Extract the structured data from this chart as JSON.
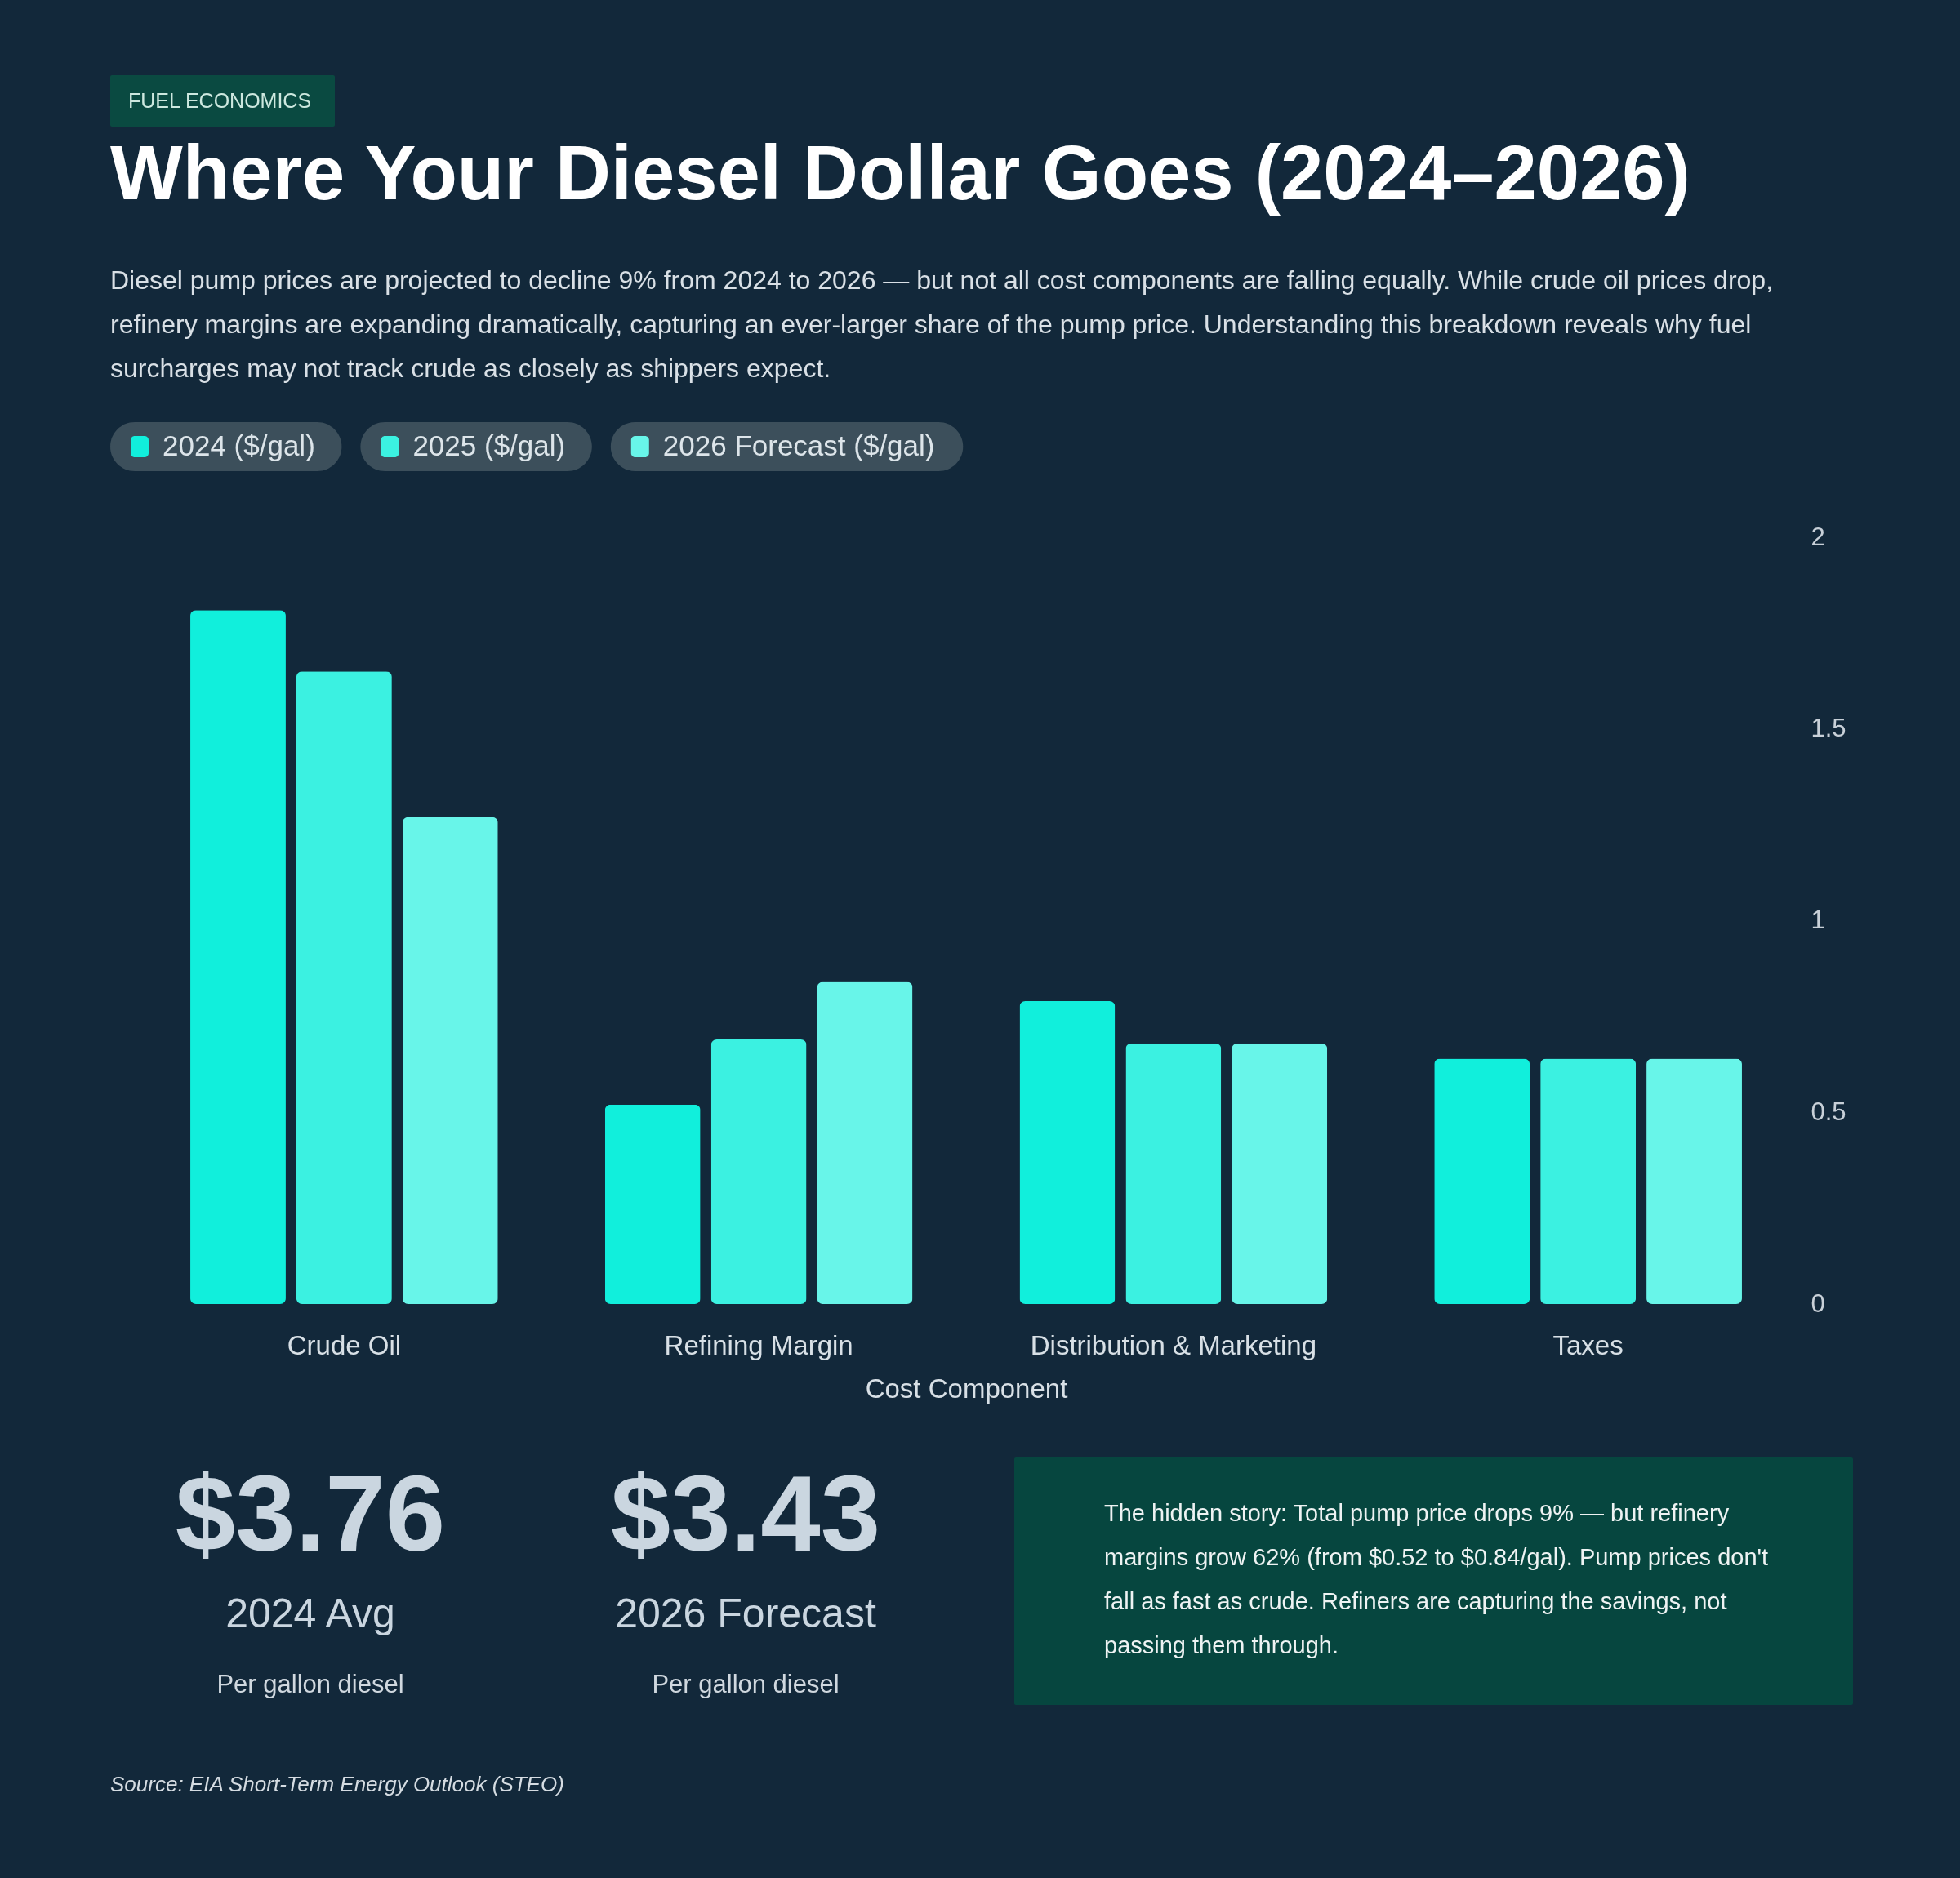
{
  "chart_data": {
    "type": "bar",
    "title": "Where Your Diesel Dollar Goes (2024–2026)",
    "subtitle": "Diesel pump prices are projected to decline 9% from 2024 to 2026 — but not all cost components are falling equally. While crude oil prices drop, refinery margins are expanding dramatically, capturing an ever-larger share of the pump price. Understanding this breakdown reveals why fuel surcharges may not track crude as closely as shippers expect.",
    "xlabel": "Cost Component",
    "categories": [
      "Crude Oil",
      "Refining Margin",
      "Distribution & Marketing",
      "Taxes"
    ],
    "series": [
      {
        "name": "2024 ($/gal)",
        "color": "#11efdc",
        "values": [
          1.81,
          0.52,
          0.79,
          0.64
        ]
      },
      {
        "name": "2025 ($/gal)",
        "color": "#3bf1e1",
        "values": [
          1.65,
          0.69,
          0.68,
          0.64
        ]
      },
      {
        "name": "2026 Forecast ($/gal)",
        "color": "#68f5e9",
        "values": [
          1.27,
          0.84,
          0.68,
          0.64
        ]
      }
    ],
    "ylim": [
      0,
      2
    ],
    "yticks": [
      0,
      0.5,
      1,
      1.5,
      2
    ],
    "legend": "top left",
    "annotations": [
      "FUEL ECONOMICS",
      "$3.76",
      "2024 Avg",
      "Per gallon diesel",
      "$3.43",
      "2026 Forecast",
      "Per gallon diesel",
      "The hidden story: Total pump price drops 9% — but refinery margins grow 62% (from $0.52 to $0.84/gal). Pump prices don't fall as fast as crude. Refiners are capturing the savings, not passing them through.",
      "Source: EIA Short-Term Energy Outlook (STEO)"
    ]
  }
}
